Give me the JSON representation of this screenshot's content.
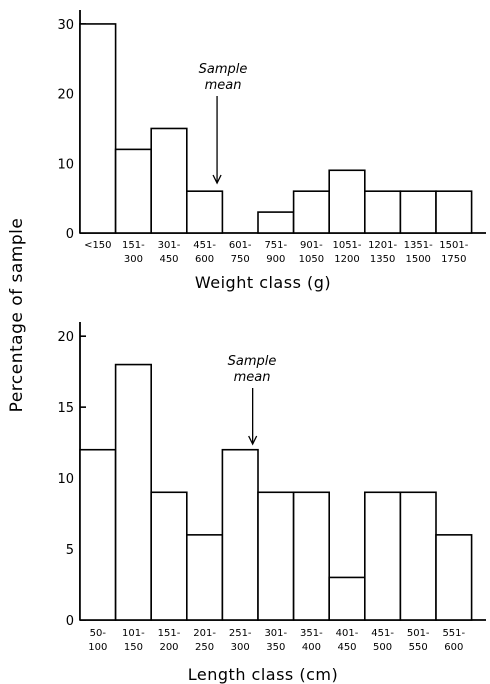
{
  "y_title": "Percentage of sample",
  "annotation": {
    "line1": "Sample",
    "line2": "mean"
  },
  "colors": {
    "stroke": "#000000",
    "fill": "#ffffff"
  },
  "chart_data": [
    {
      "type": "bar",
      "xlabel": "Weight class (g)",
      "ylim": [
        0,
        32
      ],
      "yticks": [
        0,
        10,
        20,
        30
      ],
      "categories": [
        [
          "<150"
        ],
        [
          "151-",
          "300"
        ],
        [
          "301-",
          "450"
        ],
        [
          "451-",
          "600"
        ],
        [
          "601-",
          "750"
        ],
        [
          "751-",
          "900"
        ],
        [
          "901-",
          "1050"
        ],
        [
          "1051-",
          "1200"
        ],
        [
          "1201-",
          "1350"
        ],
        [
          "1351-",
          "1500"
        ],
        [
          "1501-",
          "1750"
        ]
      ],
      "values": [
        30,
        12,
        15,
        6,
        0,
        3,
        6,
        9,
        6,
        6,
        6
      ],
      "sample_mean_class_index": 3.85,
      "annotation": "Sample mean"
    },
    {
      "type": "bar",
      "xlabel": "Length class (cm)",
      "ylim": [
        0,
        21
      ],
      "yticks": [
        0,
        5,
        10,
        15,
        20
      ],
      "categories": [
        [
          "50-",
          "100"
        ],
        [
          "101-",
          "150"
        ],
        [
          "151-",
          "200"
        ],
        [
          "201-",
          "250"
        ],
        [
          "251-",
          "300"
        ],
        [
          "301-",
          "350"
        ],
        [
          "351-",
          "400"
        ],
        [
          "401-",
          "450"
        ],
        [
          "451-",
          "500"
        ],
        [
          "501-",
          "550"
        ],
        [
          "551-",
          "600"
        ]
      ],
      "values": [
        12,
        18,
        9,
        6,
        12,
        9,
        9,
        3,
        9,
        9,
        6
      ],
      "sample_mean_class_index": 4.85,
      "annotation": "Sample mean"
    }
  ]
}
